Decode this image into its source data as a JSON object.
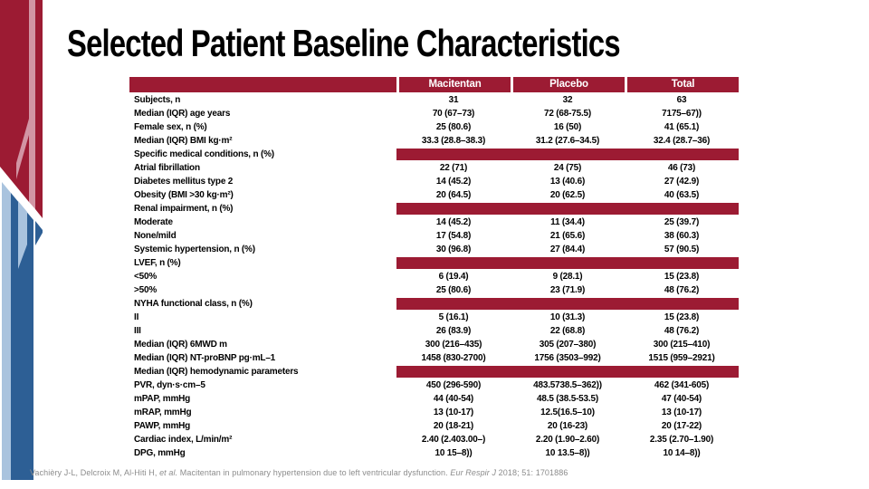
{
  "slide": {
    "title": "Selected Patient Baseline Characteristics"
  },
  "colors": {
    "maroon": "#9C1B33",
    "pink": "#D295A4",
    "blue": "#2D5F95",
    "light_blue": "#A9C3DE",
    "footer_gray": "#8C8C8C"
  },
  "table": {
    "columns": [
      "",
      "Macitentan",
      "Placebo",
      "Total"
    ],
    "rows": [
      {
        "label": "Subjects, n",
        "values": [
          "31",
          "32",
          "63"
        ]
      },
      {
        "label": "Median (IQR) age years",
        "values": [
          "70 (67–73)",
          "72 (68-75.5)",
          "7175–67))"
        ]
      },
      {
        "label": "Female sex, n (%)",
        "values": [
          "25 (80.6)",
          "16 (50)",
          "41 (65.1)"
        ]
      },
      {
        "label": "Median (IQR) BMI kg·m²",
        "values": [
          "33.3 (28.8–38.3)",
          "31.2 (27.6–34.5)",
          "32.4 (28.7–36)"
        ]
      },
      {
        "label": "Specific medical conditions, n (%)"
      },
      {
        "label": "Atrial fibrillation",
        "values": [
          "22 (71)",
          "24 (75)",
          "46 (73)"
        ]
      },
      {
        "label": "Diabetes mellitus type 2",
        "values": [
          "14 (45.2)",
          "13 (40.6)",
          "27 (42.9)"
        ]
      },
      {
        "label": "Obesity (BMI >30 kg·m²)",
        "values": [
          "20 (64.5)",
          "20 (62.5)",
          "40 (63.5)"
        ]
      },
      {
        "label": "Renal impairment, n (%)"
      },
      {
        "label": "Moderate",
        "values": [
          "14 (45.2)",
          "11 (34.4)",
          "25 (39.7)"
        ]
      },
      {
        "label": "None/mild",
        "values": [
          "17 (54.8)",
          "21 (65.6)",
          "38 (60.3)"
        ]
      },
      {
        "label": "Systemic hypertension, n (%)",
        "values": [
          "30 (96.8)",
          "27 (84.4)",
          "57 (90.5)"
        ]
      },
      {
        "label": "LVEF, n (%)"
      },
      {
        "label": "<50%",
        "values": [
          "6 (19.4)",
          "9 (28.1)",
          "15 (23.8)"
        ]
      },
      {
        "label": ">50%",
        "values": [
          "25 (80.6)",
          "23 (71.9)",
          "48 (76.2)"
        ]
      },
      {
        "label": "NYHA functional class, n (%)"
      },
      {
        "label": "II",
        "values": [
          "5 (16.1)",
          "10 (31.3)",
          "15 (23.8)"
        ]
      },
      {
        "label": "III",
        "values": [
          "26 (83.9)",
          "22 (68.8)",
          "48 (76.2)"
        ]
      },
      {
        "label": "Median (IQR) 6MWD m",
        "values": [
          "300 (216–435)",
          "305 (207–380)",
          "300 (215–410)"
        ]
      },
      {
        "label": "Median (IQR) NT-proBNP pg·mL–1",
        "values": [
          "1458 (830-2700)",
          "1756 (3503–992)",
          "1515 (959–2921)"
        ]
      },
      {
        "label": "Median (IQR) hemodynamic parameters"
      },
      {
        "label": "PVR, dyn·s·cm–5",
        "values": [
          "450 (296-590)",
          "483.5738.5–362))",
          "462 (341-605)"
        ]
      },
      {
        "label": "mPAP, mmHg",
        "values": [
          "44 (40-54)",
          "48.5 (38.5-53.5)",
          "47 (40-54)"
        ]
      },
      {
        "label": "mRAP, mmHg",
        "values": [
          "13 (10-17)",
          "12.5(16.5–10)",
          "13 (10-17)"
        ]
      },
      {
        "label": "PAWP, mmHg",
        "values": [
          "20 (18-21)",
          "20 (16-23)",
          "20 (17-22)"
        ]
      },
      {
        "label": "Cardiac index, L/min/m²",
        "values": [
          "2.40 (2.403.00–)",
          "2.20 (1.90–2.60)",
          "2.35  (2.70–1.90)"
        ]
      },
      {
        "label": "DPG, mmHg",
        "values": [
          "10 15–8))",
          "10 13.5–8))",
          "10 14–8))"
        ]
      }
    ]
  },
  "footer": {
    "authors": "Vachièry J-L, Delcroix M, Al-Hiti H, ",
    "etal": "et al.",
    "title_text": " Macitentan in pulmonary hypertension due to left ventricular dysfunction. ",
    "journal": "Eur Respir J",
    "ref": " 2018; 51: 1701886"
  }
}
